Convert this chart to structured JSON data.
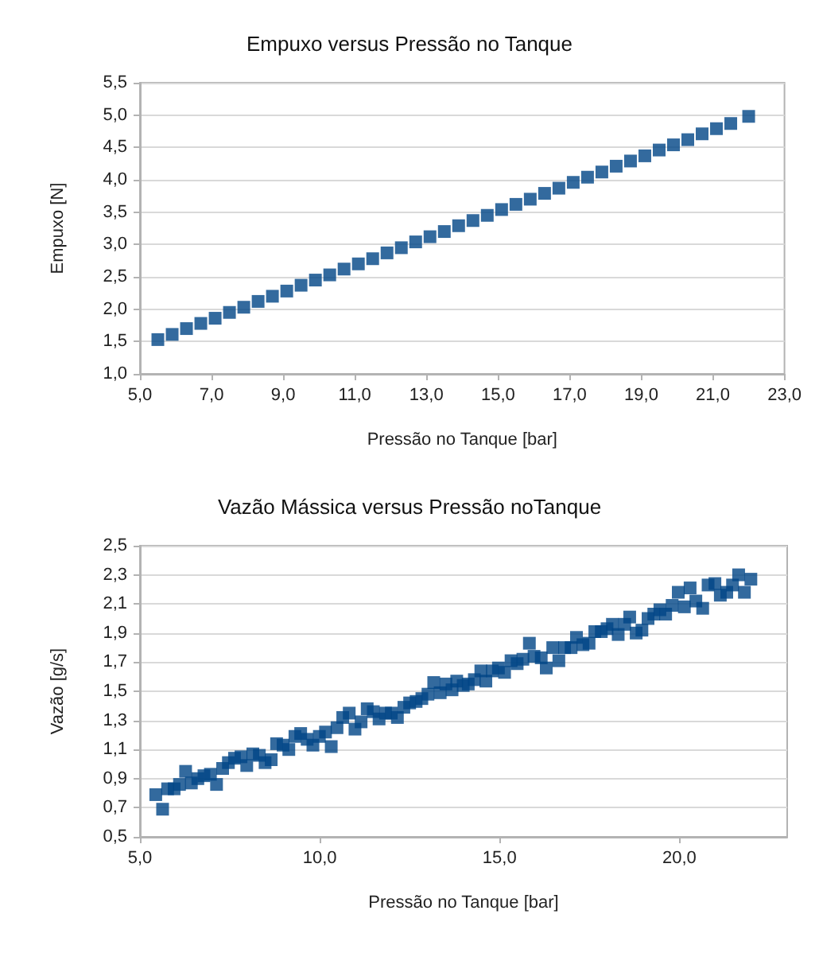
{
  "chart_data": [
    {
      "type": "scatter",
      "title": "Empuxo versus Pressão no Tanque",
      "xlabel": "Pressão no Tanque [bar]",
      "ylabel": "Empuxo [N]",
      "marker": "square",
      "grid": "y",
      "color": "#004586",
      "x": [
        5.5,
        5.9,
        6.3,
        6.7,
        7.1,
        7.5,
        7.9,
        8.3,
        8.7,
        9.1,
        9.5,
        9.9,
        10.3,
        10.7,
        11.1,
        11.5,
        11.9,
        12.3,
        12.7,
        13.1,
        13.5,
        13.9,
        14.3,
        14.7,
        15.1,
        15.5,
        15.9,
        16.3,
        16.7,
        17.1,
        17.5,
        17.9,
        18.3,
        18.7,
        19.1,
        19.5,
        19.9,
        20.3,
        20.7,
        21.1,
        21.5,
        22.0
      ],
      "values": [
        1.53,
        1.61,
        1.7,
        1.78,
        1.86,
        1.95,
        2.03,
        2.12,
        2.2,
        2.28,
        2.37,
        2.45,
        2.53,
        2.62,
        2.7,
        2.78,
        2.87,
        2.95,
        3.04,
        3.12,
        3.2,
        3.29,
        3.37,
        3.45,
        3.54,
        3.62,
        3.7,
        3.79,
        3.87,
        3.96,
        4.04,
        4.12,
        4.21,
        4.29,
        4.37,
        4.46,
        4.54,
        4.62,
        4.71,
        4.79,
        4.87,
        4.98
      ],
      "xlim": [
        5,
        23
      ],
      "xticks": [
        {
          "value": 5,
          "label": "5,0"
        },
        {
          "value": 7,
          "label": "7,0"
        },
        {
          "value": 9,
          "label": "9,0"
        },
        {
          "value": 11,
          "label": "11,0"
        },
        {
          "value": 13,
          "label": "13,0"
        },
        {
          "value": 15,
          "label": "15,0"
        },
        {
          "value": 17,
          "label": "17,0"
        },
        {
          "value": 19,
          "label": "19,0"
        },
        {
          "value": 21,
          "label": "21,0"
        },
        {
          "value": 23,
          "label": "23,0"
        }
      ],
      "ylim": [
        1,
        5.5
      ],
      "yticks": [
        {
          "value": 1,
          "label": "1,0"
        },
        {
          "value": 1.5,
          "label": "1,5"
        },
        {
          "value": 2,
          "label": "2,0"
        },
        {
          "value": 2.5,
          "label": "2,5"
        },
        {
          "value": 3,
          "label": "3,0"
        },
        {
          "value": 3.5,
          "label": "3,5"
        },
        {
          "value": 4,
          "label": "4,0"
        },
        {
          "value": 4.5,
          "label": "4,5"
        },
        {
          "value": 5,
          "label": "5,0"
        },
        {
          "value": 5.5,
          "label": "5,5"
        }
      ]
    },
    {
      "type": "scatter",
      "title": "Vazão Mássica versus Pressão noTanque",
      "xlabel": "Pressão no Tanque [bar]",
      "ylabel": "Vazão [g/s]",
      "marker": "square",
      "grid": "y",
      "color": "#004586",
      "x": [
        5.44,
        5.63,
        5.77,
        5.95,
        6.1,
        6.27,
        6.43,
        6.61,
        6.78,
        6.96,
        7.13,
        7.3,
        7.46,
        7.63,
        7.81,
        7.97,
        8.14,
        8.32,
        8.48,
        8.65,
        8.8,
        8.98,
        9.14,
        9.31,
        9.47,
        9.65,
        9.81,
        9.99,
        10.16,
        10.32,
        10.48,
        10.64,
        10.82,
        10.98,
        11.15,
        11.32,
        11.49,
        11.65,
        11.83,
        11.99,
        12.16,
        12.34,
        12.5,
        12.68,
        12.84,
        13.01,
        13.17,
        13.35,
        13.51,
        13.68,
        13.81,
        13.99,
        14.13,
        14.3,
        14.48,
        14.62,
        14.8,
        14.97,
        15.14,
        15.32,
        15.49,
        15.65,
        15.83,
        15.96,
        16.16,
        16.3,
        16.48,
        16.65,
        16.81,
        16.99,
        17.14,
        17.32,
        17.49,
        17.65,
        17.83,
        17.99,
        18.14,
        18.3,
        18.48,
        18.62,
        18.8,
        18.96,
        19.13,
        19.29,
        19.46,
        19.62,
        19.8,
        19.97,
        20.14,
        20.3,
        20.46,
        20.65,
        20.8,
        20.99,
        21.14,
        21.32,
        21.48,
        21.65,
        21.81,
        21.99
      ],
      "values": [
        0.79,
        0.69,
        0.83,
        0.83,
        0.86,
        0.95,
        0.87,
        0.9,
        0.92,
        0.93,
        0.86,
        0.97,
        1.01,
        1.04,
        1.05,
        0.99,
        1.07,
        1.06,
        1.01,
        1.03,
        1.14,
        1.13,
        1.1,
        1.19,
        1.21,
        1.17,
        1.13,
        1.19,
        1.22,
        1.12,
        1.25,
        1.32,
        1.35,
        1.24,
        1.29,
        1.38,
        1.36,
        1.31,
        1.35,
        1.35,
        1.32,
        1.39,
        1.42,
        1.43,
        1.45,
        1.48,
        1.56,
        1.49,
        1.55,
        1.51,
        1.57,
        1.54,
        1.55,
        1.58,
        1.64,
        1.57,
        1.64,
        1.66,
        1.63,
        1.71,
        1.69,
        1.72,
        1.83,
        1.74,
        1.73,
        1.66,
        1.8,
        1.71,
        1.8,
        1.8,
        1.87,
        1.82,
        1.83,
        1.91,
        1.91,
        1.93,
        1.96,
        1.89,
        1.96,
        2.01,
        1.9,
        1.92,
        2.0,
        2.03,
        2.06,
        2.03,
        2.09,
        2.18,
        2.08,
        2.21,
        2.12,
        2.07,
        2.23,
        2.24,
        2.16,
        2.18,
        2.23,
        2.3,
        2.18,
        2.27
      ],
      "xlim": [
        5,
        23
      ],
      "xticks": [
        {
          "value": 5,
          "label": "5,0"
        },
        {
          "value": 10,
          "label": "10,0"
        },
        {
          "value": 15,
          "label": "15,0"
        },
        {
          "value": 20,
          "label": "20,0"
        }
      ],
      "ylim": [
        0.5,
        2.5
      ],
      "yticks": [
        {
          "value": 0.5,
          "label": "0,5"
        },
        {
          "value": 0.7,
          "label": "0,7"
        },
        {
          "value": 0.9,
          "label": "0,9"
        },
        {
          "value": 1.1,
          "label": "1,1"
        },
        {
          "value": 1.3,
          "label": "1,3"
        },
        {
          "value": 1.5,
          "label": "1,5"
        },
        {
          "value": 1.7,
          "label": "1,7"
        },
        {
          "value": 1.9,
          "label": "1,9"
        },
        {
          "value": 2.1,
          "label": "2,1"
        },
        {
          "value": 2.3,
          "label": "2,3"
        },
        {
          "value": 2.5,
          "label": "2,5"
        }
      ]
    }
  ]
}
